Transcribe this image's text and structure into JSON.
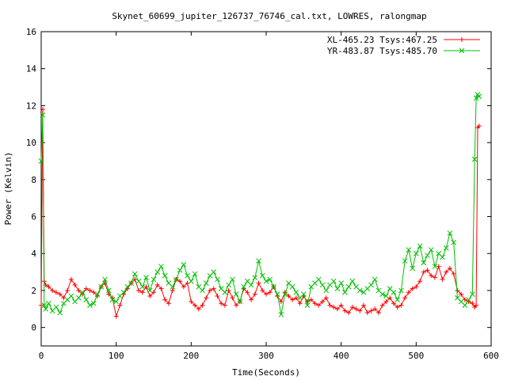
{
  "chart_data": {
    "type": "line",
    "title": "Skynet_60699_jupiter_126737_76746_cal.txt, LOWRES, ralongmap",
    "xlabel": "Time(Seconds)",
    "ylabel": "Power (Kelvin)",
    "xlim": [
      0,
      600
    ],
    "ylim": [
      -1,
      16
    ],
    "xticks": [
      0,
      100,
      200,
      300,
      400,
      500,
      600
    ],
    "yticks": [
      0,
      2,
      4,
      6,
      8,
      10,
      12,
      14,
      16
    ],
    "grid": false,
    "legend_position": "top-right",
    "series": [
      {
        "name": "XL-465.23 Tsys:467.25",
        "color": "#ff0000",
        "marker": "plus",
        "x": [
          0,
          2,
          4,
          6,
          10,
          15,
          20,
          25,
          30,
          35,
          40,
          45,
          50,
          55,
          60,
          65,
          70,
          75,
          80,
          85,
          90,
          95,
          100,
          105,
          110,
          115,
          120,
          125,
          130,
          135,
          140,
          145,
          150,
          155,
          160,
          165,
          170,
          175,
          180,
          185,
          190,
          195,
          200,
          205,
          210,
          215,
          220,
          225,
          230,
          235,
          240,
          245,
          250,
          255,
          260,
          265,
          270,
          275,
          280,
          285,
          290,
          295,
          300,
          305,
          310,
          315,
          320,
          325,
          330,
          335,
          340,
          345,
          350,
          355,
          360,
          365,
          370,
          375,
          380,
          385,
          390,
          395,
          400,
          405,
          410,
          415,
          420,
          425,
          430,
          435,
          440,
          445,
          450,
          455,
          460,
          465,
          470,
          475,
          480,
          485,
          490,
          495,
          500,
          505,
          510,
          515,
          520,
          525,
          530,
          535,
          540,
          545,
          550,
          555,
          560,
          565,
          570,
          575,
          578,
          580,
          582,
          584
        ],
        "y": [
          1.2,
          11.8,
          2.5,
          2.3,
          2.2,
          2.0,
          1.9,
          1.8,
          1.6,
          2.0,
          2.6,
          2.3,
          2.0,
          1.8,
          2.1,
          2.0,
          1.9,
          1.7,
          2.2,
          2.4,
          1.8,
          1.6,
          0.6,
          1.2,
          1.8,
          2.1,
          2.4,
          2.6,
          2.0,
          1.9,
          2.2,
          1.7,
          1.9,
          2.3,
          2.1,
          1.5,
          1.3,
          2.0,
          2.6,
          2.5,
          2.2,
          2.4,
          1.4,
          1.2,
          1.0,
          1.2,
          1.6,
          2.0,
          2.1,
          1.7,
          1.3,
          1.2,
          2.0,
          1.6,
          1.2,
          1.4,
          2.1,
          1.9,
          1.5,
          1.8,
          2.4,
          2.0,
          1.8,
          1.9,
          2.2,
          1.7,
          1.4,
          1.9,
          1.7,
          1.5,
          1.6,
          1.3,
          1.7,
          1.4,
          1.5,
          1.3,
          1.2,
          1.4,
          1.6,
          1.2,
          1.1,
          1.0,
          1.2,
          0.9,
          0.8,
          1.1,
          1.0,
          0.9,
          1.2,
          0.8,
          0.9,
          1.0,
          0.8,
          1.2,
          1.4,
          1.6,
          1.3,
          1.1,
          1.2,
          1.6,
          1.9,
          2.1,
          2.2,
          2.5,
          3.0,
          3.1,
          2.8,
          2.7,
          3.3,
          2.6,
          3.0,
          3.2,
          2.9,
          2.0,
          1.8,
          1.5,
          1.4,
          1.3,
          1.1,
          1.2,
          10.8,
          10.9
        ]
      },
      {
        "name": "YR-483.87 Tsys:485.70",
        "color": "#00c000",
        "marker": "cross",
        "x": [
          0,
          2,
          4,
          6,
          10,
          15,
          20,
          25,
          30,
          35,
          40,
          45,
          50,
          55,
          60,
          65,
          70,
          75,
          80,
          85,
          90,
          95,
          100,
          105,
          110,
          115,
          120,
          125,
          130,
          135,
          140,
          145,
          150,
          155,
          160,
          165,
          170,
          175,
          180,
          185,
          190,
          195,
          200,
          205,
          210,
          215,
          220,
          225,
          230,
          235,
          240,
          245,
          250,
          255,
          260,
          265,
          270,
          275,
          280,
          285,
          290,
          295,
          300,
          305,
          310,
          315,
          320,
          325,
          330,
          335,
          340,
          345,
          350,
          355,
          360,
          365,
          370,
          375,
          380,
          385,
          390,
          395,
          400,
          405,
          410,
          415,
          420,
          425,
          430,
          435,
          440,
          445,
          450,
          455,
          460,
          465,
          470,
          475,
          480,
          485,
          490,
          495,
          500,
          505,
          510,
          515,
          520,
          525,
          530,
          535,
          540,
          545,
          550,
          555,
          560,
          565,
          570,
          575,
          578,
          580,
          582,
          584
        ],
        "y": [
          9.0,
          11.5,
          1.2,
          1.0,
          1.3,
          0.9,
          1.1,
          0.8,
          1.3,
          1.5,
          1.7,
          1.4,
          1.6,
          1.9,
          1.5,
          1.2,
          1.3,
          1.8,
          2.2,
          2.6,
          2.0,
          1.5,
          1.4,
          1.7,
          1.9,
          2.2,
          2.4,
          2.9,
          2.5,
          2.2,
          2.7,
          2.0,
          2.6,
          3.0,
          3.3,
          2.8,
          2.4,
          2.2,
          2.6,
          3.1,
          3.4,
          2.8,
          2.5,
          2.9,
          2.2,
          2.0,
          2.4,
          2.8,
          3.0,
          2.6,
          2.1,
          1.9,
          2.3,
          2.6,
          1.8,
          1.4,
          2.2,
          2.5,
          2.3,
          2.7,
          3.6,
          2.8,
          2.5,
          2.6,
          2.2,
          1.8,
          0.7,
          1.8,
          2.4,
          2.2,
          1.9,
          1.6,
          1.8,
          1.2,
          2.2,
          2.4,
          2.6,
          2.3,
          2.0,
          2.3,
          2.5,
          2.1,
          2.4,
          1.9,
          2.2,
          2.5,
          2.2,
          2.0,
          1.9,
          2.1,
          2.3,
          2.6,
          2.0,
          1.8,
          1.7,
          2.1,
          1.9,
          1.5,
          2.0,
          3.6,
          4.2,
          3.2,
          4.0,
          4.4,
          3.5,
          3.9,
          4.2,
          3.3,
          4.0,
          3.8,
          4.3,
          5.1,
          4.6,
          1.6,
          1.4,
          1.2,
          1.5,
          1.8,
          9.1,
          12.4,
          12.6,
          12.5
        ]
      }
    ]
  }
}
